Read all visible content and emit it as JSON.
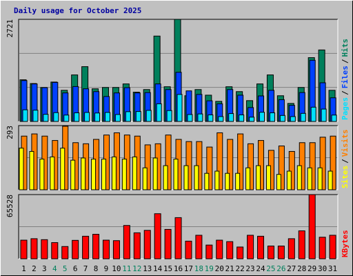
{
  "chart_data": [
    {
      "type": "bar",
      "title": "Daily usage for October 2025",
      "ylim": [
        0,
        2721
      ],
      "yticks": [
        2721
      ],
      "grid_divisions": 3,
      "separator": "/",
      "series": [
        {
          "name": "Hits",
          "color": "#00805c",
          "values": [
            1110,
            1010,
            905,
            1050,
            830,
            1240,
            1460,
            870,
            905,
            905,
            1000,
            780,
            850,
            2275,
            925,
            2721,
            685,
            850,
            700,
            535,
            925,
            795,
            555,
            1000,
            1240,
            685,
            480,
            905,
            1700,
            1905,
            830
          ]
        },
        {
          "name": "Files",
          "color": "#0040ff",
          "values": [
            1090,
            1000,
            900,
            1040,
            760,
            930,
            870,
            795,
            665,
            760,
            900,
            760,
            770,
            1000,
            850,
            1310,
            815,
            720,
            550,
            470,
            850,
            700,
            370,
            680,
            830,
            580,
            430,
            770,
            1630,
            1030,
            630
          ]
        },
        {
          "name": "Pages",
          "color": "#00e0ff",
          "values": [
            310,
            300,
            190,
            235,
            170,
            230,
            240,
            225,
            240,
            185,
            260,
            265,
            295,
            470,
            290,
            720,
            185,
            200,
            175,
            130,
            210,
            175,
            115,
            245,
            230,
            160,
            130,
            215,
            380,
            330,
            170
          ]
        }
      ]
    },
    {
      "type": "bar",
      "ylim": [
        0,
        293
      ],
      "yticks": [
        293
      ],
      "grid_divisions": 2,
      "separator": "/",
      "series": [
        {
          "name": "Visits",
          "color": "#ff8000",
          "values": [
            245,
            255,
            245,
            225,
            290,
            215,
            210,
            230,
            250,
            260,
            250,
            245,
            205,
            210,
            250,
            230,
            220,
            220,
            195,
            260,
            230,
            255,
            210,
            225,
            180,
            200,
            175,
            215,
            215,
            240,
            245
          ]
        },
        {
          "name": "Sites",
          "color": "#ffff00",
          "values": [
            190,
            175,
            140,
            150,
            190,
            135,
            145,
            140,
            140,
            150,
            140,
            150,
            100,
            145,
            110,
            140,
            110,
            110,
            75,
            85,
            75,
            75,
            100,
            110,
            110,
            70,
            85,
            110,
            100,
            100,
            85
          ]
        }
      ]
    },
    {
      "type": "bar",
      "ylim": [
        0,
        65528
      ],
      "yticks": [
        65528
      ],
      "grid_divisions": 2,
      "categories": [
        "1",
        "2",
        "3",
        "4",
        "5",
        "6",
        "7",
        "8",
        "9",
        "10",
        "11",
        "12",
        "13",
        "14",
        "15",
        "16",
        "17",
        "18",
        "19",
        "20",
        "21",
        "22",
        "23",
        "24",
        "25",
        "26",
        "27",
        "28",
        "29",
        "30",
        "31"
      ],
      "category_colors": [
        "#000000",
        "#000000",
        "#000000",
        "#00805c",
        "#00805c",
        "#000000",
        "#000000",
        "#000000",
        "#000000",
        "#000000",
        "#00805c",
        "#00805c",
        "#000000",
        "#000000",
        "#000000",
        "#000000",
        "#000000",
        "#00805c",
        "#00805c",
        "#000000",
        "#000000",
        "#000000",
        "#000000",
        "#000000",
        "#00805c",
        "#00805c",
        "#000000",
        "#000000",
        "#000000",
        "#000000",
        "#000000"
      ],
      "series": [
        {
          "name": "KBytes",
          "color": "#ff0000",
          "values": [
            19000,
            20500,
            19500,
            16500,
            12500,
            18800,
            23000,
            25000,
            19000,
            18500,
            34000,
            26500,
            29000,
            46000,
            30000,
            42000,
            18000,
            24000,
            14000,
            19000,
            17500,
            12000,
            24000,
            23000,
            13000,
            13000,
            20500,
            28500,
            65528,
            22000,
            24000
          ]
        }
      ]
    }
  ]
}
